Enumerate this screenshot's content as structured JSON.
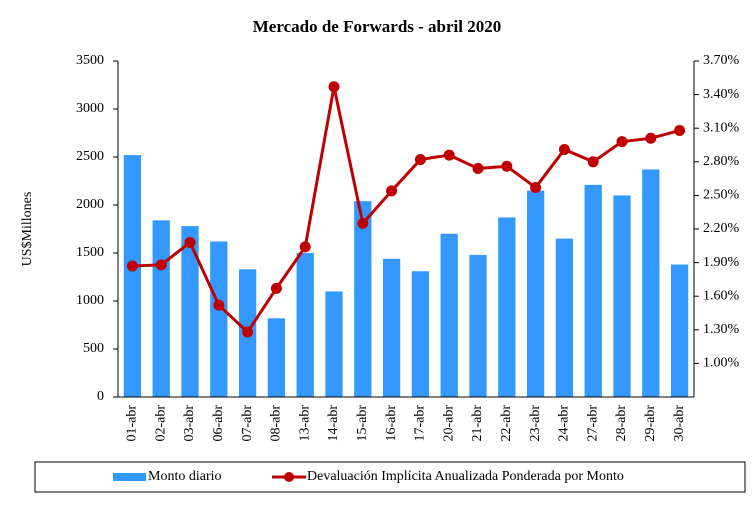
{
  "chart_data": {
    "type": "bar_line",
    "title": "Mercado de Forwards - abril 2020",
    "y_label": "US$Millones",
    "categories": [
      "01-abr",
      "02-abr",
      "03-abr",
      "06-abr",
      "07-abr",
      "08-abr",
      "13-abr",
      "14-abr",
      "15-abr",
      "16-abr",
      "17-abr",
      "20-abr",
      "21-abr",
      "22-abr",
      "23-abr",
      "24-abr",
      "27-abr",
      "28-abr",
      "29-abr",
      "30-abr"
    ],
    "series": [
      {
        "name": "Monto diario",
        "color": "#3399ff",
        "type": "bar",
        "values": [
          2520,
          1840,
          1780,
          1620,
          1330,
          820,
          1500,
          1100,
          2040,
          1440,
          1310,
          1700,
          1480,
          1870,
          2150,
          1650,
          2210,
          2100,
          2370,
          1380
        ]
      },
      {
        "name": "Devaluación Implícita Anualizada Ponderada por Monto",
        "color": "#c00000",
        "type": "line",
        "axis": "y2",
        "values": [
          1.87,
          1.88,
          2.08,
          1.52,
          1.28,
          1.67,
          2.04,
          3.47,
          2.25,
          2.54,
          2.82,
          2.86,
          2.74,
          2.76,
          2.57,
          2.91,
          2.8,
          2.98,
          3.01,
          3.08
        ]
      }
    ],
    "ylim": [
      0,
      3500
    ],
    "yticks": [
      0,
      500,
      1000,
      1500,
      2000,
      2500,
      3000,
      3500
    ],
    "y2lim": [
      0.7,
      3.7
    ],
    "y2ticks": [
      {
        "value": 1.0,
        "label": "1.00%"
      },
      {
        "value": 1.3,
        "label": "1.30%"
      },
      {
        "value": 1.6,
        "label": "1.60%"
      },
      {
        "value": 1.9,
        "label": "1.90%"
      },
      {
        "value": 2.2,
        "label": "2.20%"
      },
      {
        "value": 2.5,
        "label": "2.50%"
      },
      {
        "value": 2.8,
        "label": "2.80%"
      },
      {
        "value": 3.1,
        "label": "3.10%"
      },
      {
        "value": 3.4,
        "label": "3.40%"
      },
      {
        "value": 3.7,
        "label": "3.70%"
      }
    ],
    "legend": "bottom"
  }
}
